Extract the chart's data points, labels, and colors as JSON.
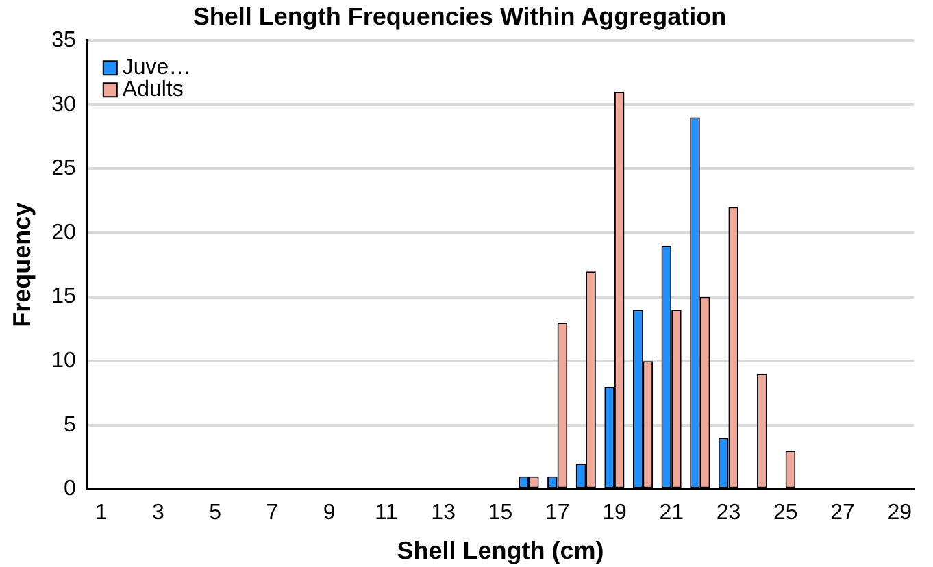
{
  "chart_data": {
    "type": "bar",
    "title": "Shell Length Frequencies Within Aggregation",
    "xlabel": "Shell Length (cm)",
    "ylabel": "Frequency",
    "x": [
      1,
      2,
      3,
      4,
      5,
      6,
      7,
      8,
      9,
      10,
      11,
      12,
      13,
      14,
      15,
      16,
      17,
      18,
      19,
      20,
      21,
      22,
      23,
      24,
      25,
      26,
      27,
      28,
      29
    ],
    "series": [
      {
        "name": "Juve…",
        "color": "#1e90ff",
        "values": [
          0,
          0,
          0,
          0,
          0,
          0,
          0,
          0,
          0,
          0,
          0,
          0,
          0,
          0,
          0,
          1,
          1,
          2,
          8,
          14,
          19,
          29,
          4,
          0,
          0,
          0,
          0,
          0,
          0
        ]
      },
      {
        "name": "Adults",
        "color": "#f0a898",
        "values": [
          0,
          0,
          0,
          0,
          0,
          0,
          0,
          0,
          0,
          0,
          0,
          0,
          0,
          0,
          0,
          1,
          13,
          17,
          31,
          10,
          14,
          15,
          22,
          9,
          3,
          0,
          0,
          0,
          0
        ]
      }
    ],
    "xlim": [
      0.5,
      29.5
    ],
    "xticks": [
      1,
      3,
      5,
      7,
      9,
      11,
      13,
      15,
      17,
      19,
      21,
      23,
      25,
      27,
      29
    ],
    "ylim": [
      0,
      35
    ],
    "yticks": [
      0,
      5,
      10,
      15,
      20,
      25,
      30,
      35
    ],
    "grid": "y",
    "legend": "top left"
  }
}
